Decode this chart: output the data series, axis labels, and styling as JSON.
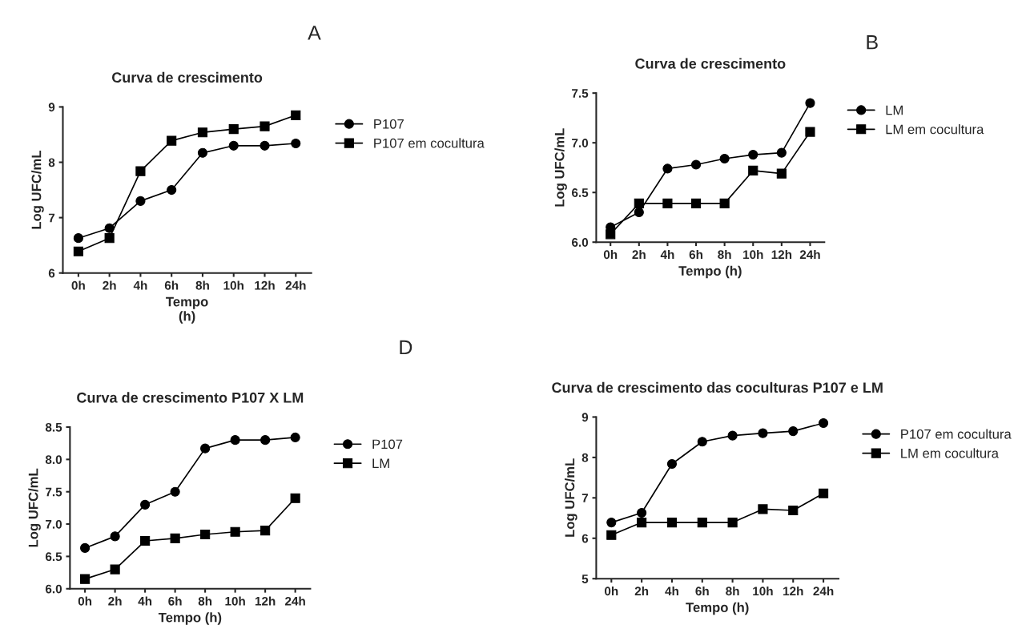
{
  "chart_data": [
    {
      "type": "line",
      "title": "Curva de crescimento",
      "xlabel": "Tempo\n(h)",
      "ylabel": "Log UFC/mL",
      "annotations": [
        "A"
      ],
      "categories": [
        "0h",
        "2h",
        "4h",
        "6h",
        "8h",
        "10h",
        "12h",
        "24h"
      ],
      "ylim": [
        6,
        9
      ],
      "yticks": [
        6,
        7,
        8,
        9
      ],
      "legend": "top right",
      "grid": false,
      "series": [
        {
          "name": "P107",
          "color": "#000000",
          "marker": "circle",
          "values": [
            6.63,
            6.81,
            7.3,
            7.5,
            8.17,
            8.3,
            8.3,
            8.34
          ]
        },
        {
          "name": "P107 em cocultura",
          "color": "#000000",
          "marker": "square",
          "values": [
            6.39,
            6.63,
            7.84,
            8.39,
            8.54,
            8.6,
            8.65,
            8.85
          ]
        }
      ]
    },
    {
      "type": "line",
      "title": "Curva de crescimento",
      "xlabel": "Tempo (h)",
      "ylabel": "Log UFC/mL",
      "annotations": [
        "B"
      ],
      "categories": [
        "0h",
        "2h",
        "4h",
        "6h",
        "8h",
        "10h",
        "12h",
        "24h"
      ],
      "ylim": [
        6.0,
        7.5
      ],
      "yticks": [
        {
          "value": 6.0,
          "label": "6.0"
        },
        6.5,
        {
          "value": 7.0,
          "label": "7.0"
        },
        7.5
      ],
      "legend": "top right",
      "grid": false,
      "series": [
        {
          "name": "LM",
          "color": "#000000",
          "marker": "circle",
          "values": [
            6.15,
            6.3,
            6.74,
            6.78,
            6.84,
            6.88,
            6.9,
            7.4
          ]
        },
        {
          "name": "LM em cocultura",
          "color": "#000000",
          "marker": "square",
          "values": [
            6.08,
            6.39,
            6.39,
            6.39,
            6.39,
            6.72,
            6.69,
            7.11
          ]
        }
      ]
    },
    {
      "type": "line",
      "title": "Curva de crescimento P107 X LM",
      "xlabel": "Tempo (h)",
      "ylabel": "Log UFC/mL",
      "categories": [
        "0h",
        "2h",
        "4h",
        "6h",
        "8h",
        "10h",
        "12h",
        "24h"
      ],
      "ylim": [
        6.0,
        8.5
      ],
      "yticks": [
        {
          "value": 6.0,
          "label": "6.0"
        },
        6.5,
        {
          "value": 7.0,
          "label": "7.0"
        },
        7.5,
        {
          "value": 8.0,
          "label": "8.0"
        },
        8.5
      ],
      "legend": "top right",
      "grid": false,
      "series": [
        {
          "name": "P107",
          "color": "#000000",
          "marker": "circle",
          "values": [
            6.63,
            6.81,
            7.3,
            7.5,
            8.17,
            8.3,
            8.3,
            8.34
          ]
        },
        {
          "name": "LM",
          "color": "#000000",
          "marker": "square",
          "values": [
            6.15,
            6.3,
            6.74,
            6.78,
            6.84,
            6.88,
            6.9,
            7.4
          ]
        }
      ]
    },
    {
      "type": "line",
      "title": "Curva de crescimento das coculturas P107 e LM",
      "xlabel": "Tempo (h)",
      "ylabel": "Log UFC/mL",
      "annotations": [
        "D"
      ],
      "categories": [
        "0h",
        "2h",
        "4h",
        "6h",
        "8h",
        "10h",
        "12h",
        "24h"
      ],
      "ylim": [
        5,
        9
      ],
      "yticks": [
        5,
        6,
        7,
        8,
        9
      ],
      "legend": "top right",
      "grid": false,
      "series": [
        {
          "name": "P107 em cocultura",
          "color": "#000000",
          "marker": "circle",
          "values": [
            6.39,
            6.63,
            7.84,
            8.39,
            8.54,
            8.6,
            8.65,
            8.85
          ]
        },
        {
          "name": "LM em cocultura",
          "color": "#000000",
          "marker": "square",
          "values": [
            6.08,
            6.39,
            6.39,
            6.39,
            6.39,
            6.72,
            6.69,
            7.11
          ]
        }
      ]
    }
  ]
}
